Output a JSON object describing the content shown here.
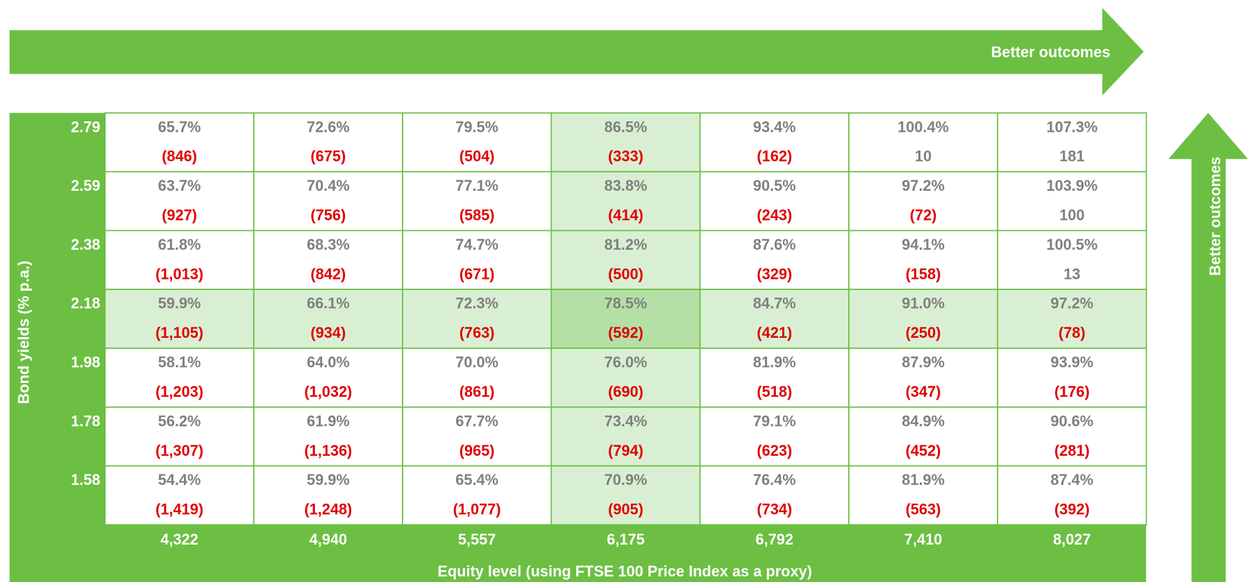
{
  "top_arrow": {
    "label": "Better outcomes"
  },
  "side_arrow": {
    "label": "Better outcomes"
  },
  "y_axis_label": "Bond yields (% p.a.)",
  "x_axis_label": "Equity level (using FTSE 100 Price Index as a proxy)",
  "columns": [
    "4,322",
    "4,940",
    "5,557",
    "6,175",
    "6,792",
    "7,410",
    "8,027"
  ],
  "rows": [
    {
      "yield": "2.79",
      "cells": [
        {
          "pct": "65.7%",
          "value": "(846)"
        },
        {
          "pct": "72.6%",
          "value": "(675)"
        },
        {
          "pct": "79.5%",
          "value": "(504)"
        },
        {
          "pct": "86.5%",
          "value": "(333)"
        },
        {
          "pct": "93.4%",
          "value": "(162)"
        },
        {
          "pct": "100.4%",
          "value": "10"
        },
        {
          "pct": "107.3%",
          "value": "181"
        }
      ]
    },
    {
      "yield": "2.59",
      "cells": [
        {
          "pct": "63.7%",
          "value": "(927)"
        },
        {
          "pct": "70.4%",
          "value": "(756)"
        },
        {
          "pct": "77.1%",
          "value": "(585)"
        },
        {
          "pct": "83.8%",
          "value": "(414)"
        },
        {
          "pct": "90.5%",
          "value": "(243)"
        },
        {
          "pct": "97.2%",
          "value": "(72)"
        },
        {
          "pct": "103.9%",
          "value": "100"
        }
      ]
    },
    {
      "yield": "2.38",
      "cells": [
        {
          "pct": "61.8%",
          "value": "(1,013)"
        },
        {
          "pct": "68.3%",
          "value": "(842)"
        },
        {
          "pct": "74.7%",
          "value": "(671)"
        },
        {
          "pct": "81.2%",
          "value": "(500)"
        },
        {
          "pct": "87.6%",
          "value": "(329)"
        },
        {
          "pct": "94.1%",
          "value": "(158)"
        },
        {
          "pct": "100.5%",
          "value": "13"
        }
      ]
    },
    {
      "yield": "2.18",
      "cells": [
        {
          "pct": "59.9%",
          "value": "(1,105)"
        },
        {
          "pct": "66.1%",
          "value": "(934)"
        },
        {
          "pct": "72.3%",
          "value": "(763)"
        },
        {
          "pct": "78.5%",
          "value": "(592)"
        },
        {
          "pct": "84.7%",
          "value": "(421)"
        },
        {
          "pct": "91.0%",
          "value": "(250)"
        },
        {
          "pct": "97.2%",
          "value": "(78)"
        }
      ]
    },
    {
      "yield": "1.98",
      "cells": [
        {
          "pct": "58.1%",
          "value": "(1,203)"
        },
        {
          "pct": "64.0%",
          "value": "(1,032)"
        },
        {
          "pct": "70.0%",
          "value": "(861)"
        },
        {
          "pct": "76.0%",
          "value": "(690)"
        },
        {
          "pct": "81.9%",
          "value": "(518)"
        },
        {
          "pct": "87.9%",
          "value": "(347)"
        },
        {
          "pct": "93.9%",
          "value": "(176)"
        }
      ]
    },
    {
      "yield": "1.78",
      "cells": [
        {
          "pct": "56.2%",
          "value": "(1,307)"
        },
        {
          "pct": "61.9%",
          "value": "(1,136)"
        },
        {
          "pct": "67.7%",
          "value": "(965)"
        },
        {
          "pct": "73.4%",
          "value": "(794)"
        },
        {
          "pct": "79.1%",
          "value": "(623)"
        },
        {
          "pct": "84.9%",
          "value": "(452)"
        },
        {
          "pct": "90.6%",
          "value": "(281)"
        }
      ]
    },
    {
      "yield": "1.58",
      "cells": [
        {
          "pct": "54.4%",
          "value": "(1,419)"
        },
        {
          "pct": "59.9%",
          "value": "(1,248)"
        },
        {
          "pct": "65.4%",
          "value": "(1,077)"
        },
        {
          "pct": "70.9%",
          "value": "(905)"
        },
        {
          "pct": "76.4%",
          "value": "(734)"
        },
        {
          "pct": "81.9%",
          "value": "(563)"
        },
        {
          "pct": "87.4%",
          "value": "(392)"
        }
      ]
    }
  ]
}
